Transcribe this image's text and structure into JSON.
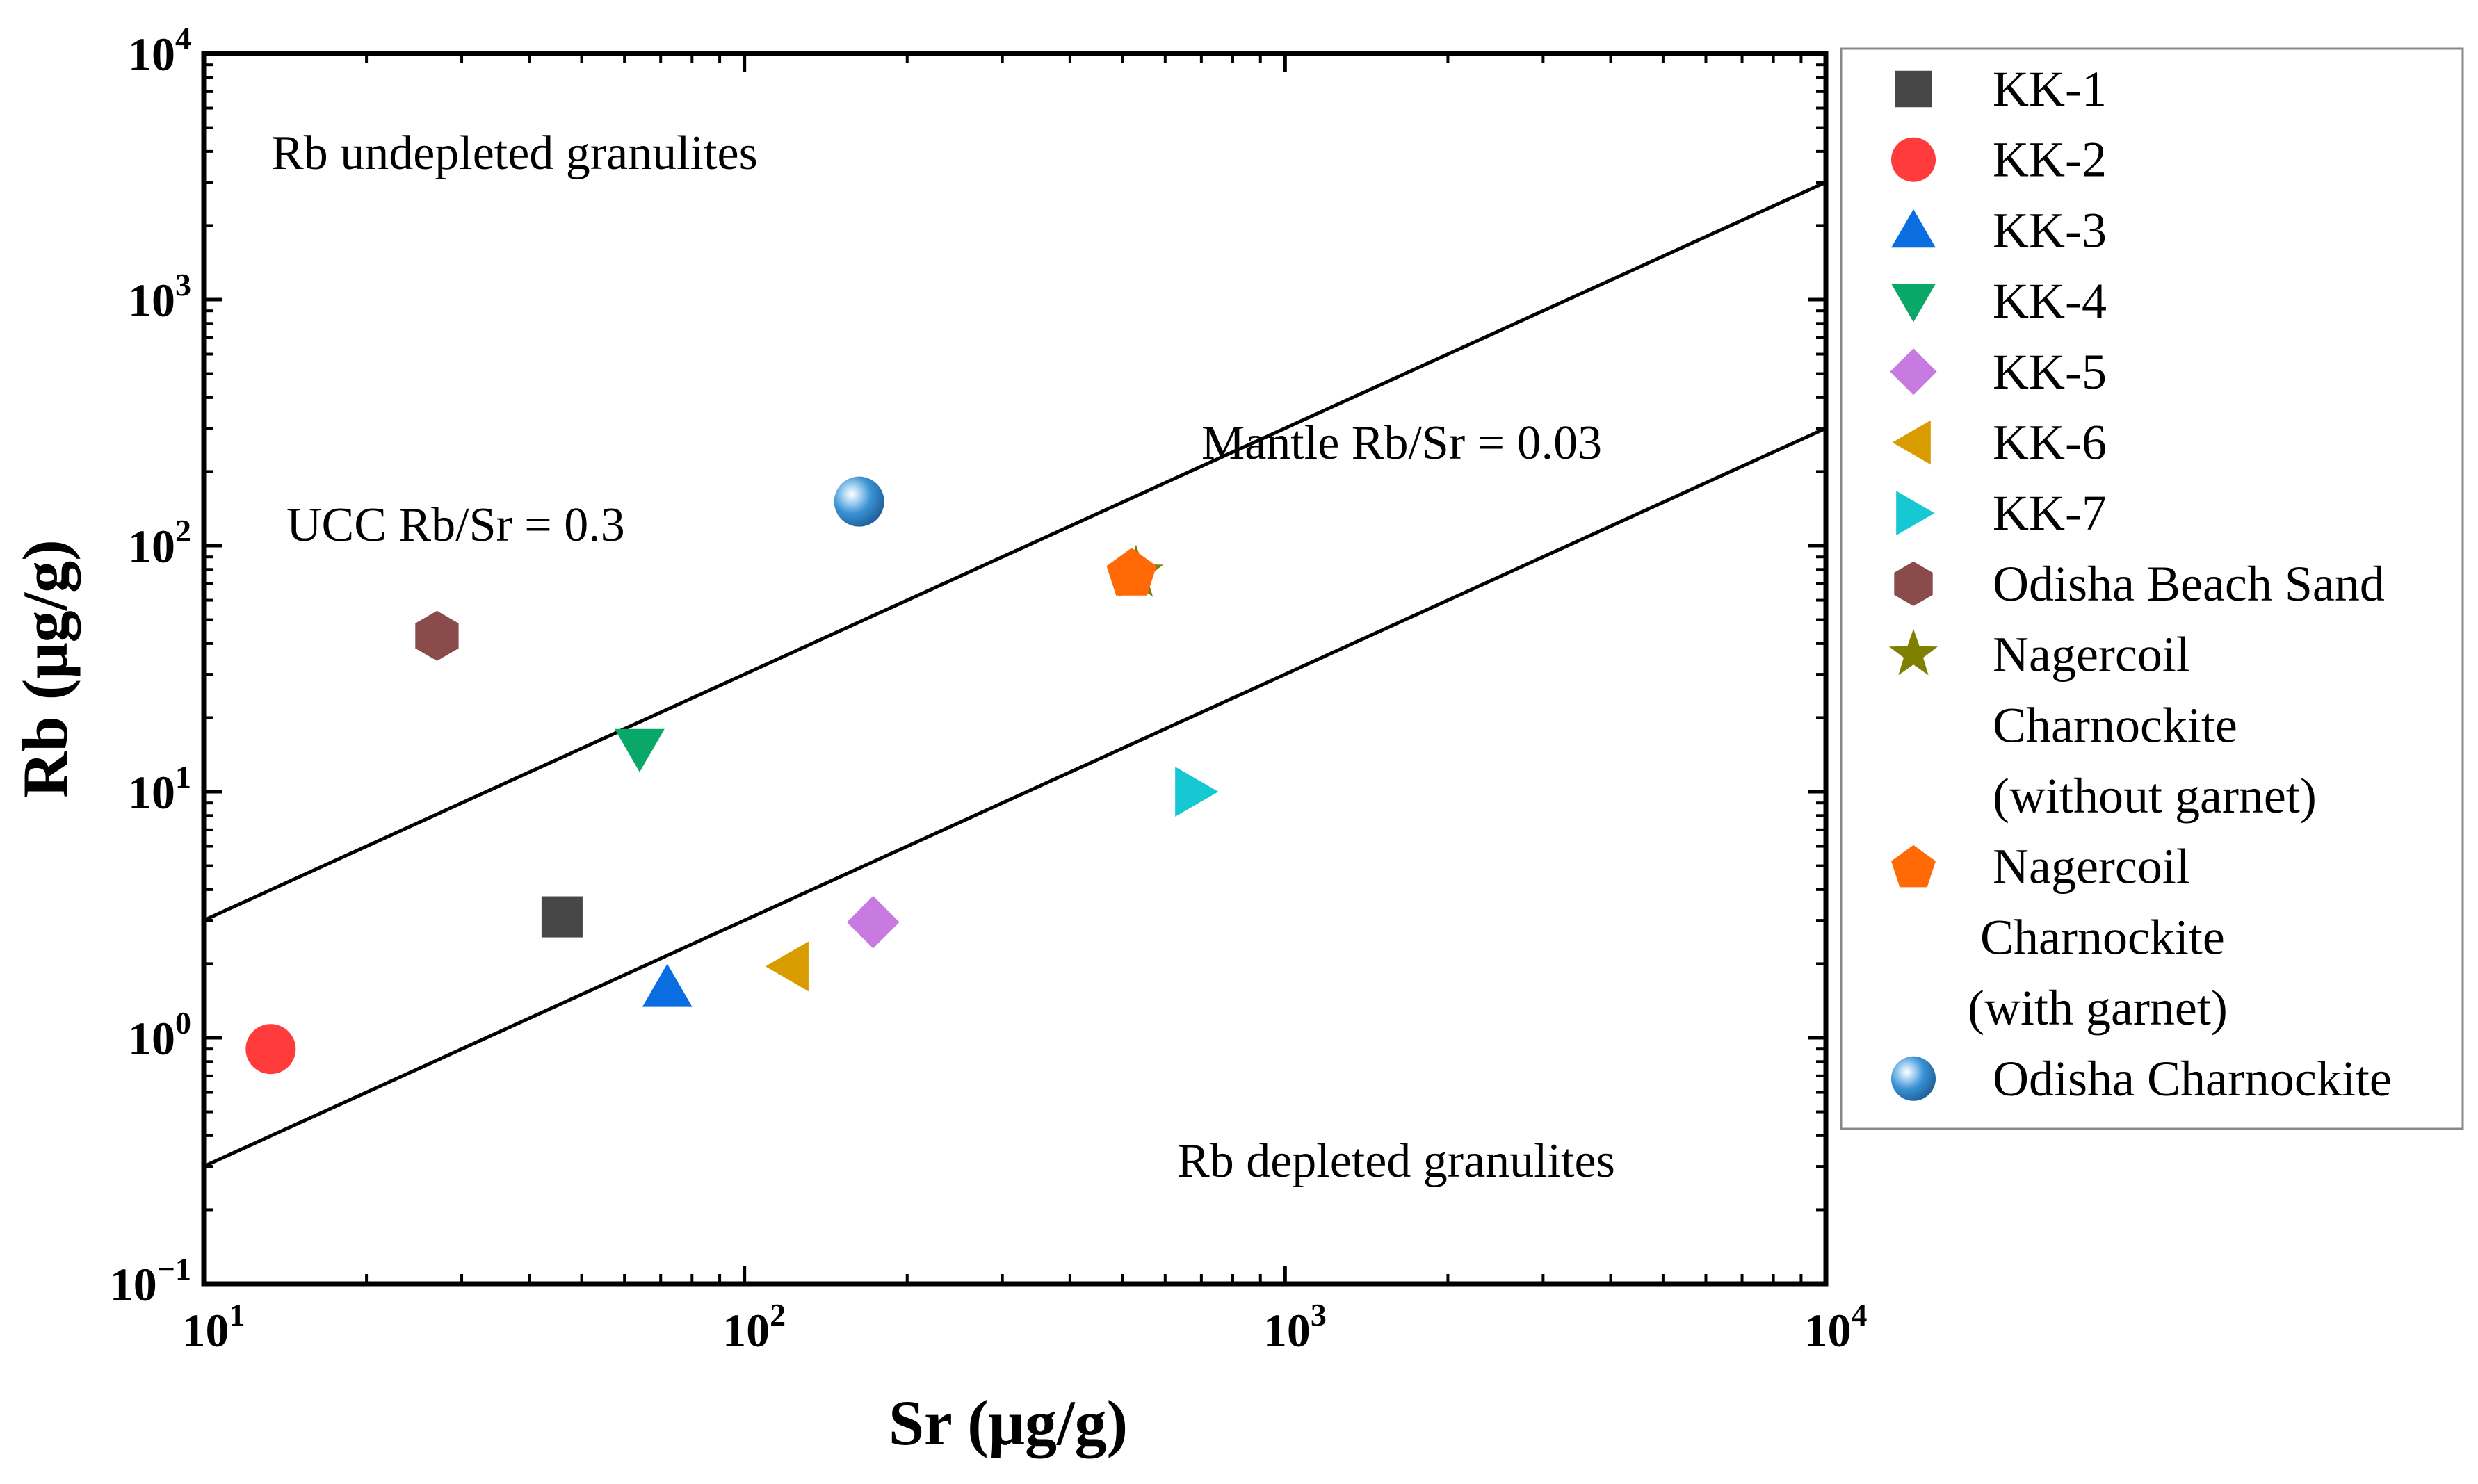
{
  "chart_data": {
    "type": "scatter",
    "title": "",
    "xlabel": "Sr (μg/g)",
    "ylabel": "Rb (μg/g)",
    "xscale": "log",
    "yscale": "log",
    "xlim": [
      10,
      10000
    ],
    "ylim": [
      0.1,
      10000
    ],
    "x_ticks": [
      {
        "value": 10,
        "base": "10",
        "exp": "1"
      },
      {
        "value": 100,
        "base": "10",
        "exp": "2"
      },
      {
        "value": 1000,
        "base": "10",
        "exp": "3"
      },
      {
        "value": 10000,
        "base": "10",
        "exp": "4"
      }
    ],
    "y_ticks": [
      {
        "value": 0.1,
        "base": "10",
        "exp": "−1"
      },
      {
        "value": 1,
        "base": "10",
        "exp": "0"
      },
      {
        "value": 10,
        "base": "10",
        "exp": "1"
      },
      {
        "value": 100,
        "base": "10",
        "exp": "2"
      },
      {
        "value": 1000,
        "base": "10",
        "exp": "3"
      },
      {
        "value": 10000,
        "base": "10",
        "exp": "4"
      }
    ],
    "grid": false,
    "legend_position": "right-outside",
    "series": [
      {
        "name": "KK-1",
        "marker": "square",
        "color": "#474747",
        "points": [
          [
            46,
            3.1
          ]
        ]
      },
      {
        "name": "KK-2",
        "marker": "circle",
        "color": "#ff3b3b",
        "points": [
          [
            13.3,
            0.9
          ]
        ]
      },
      {
        "name": "KK-3",
        "marker": "triangle-up",
        "color": "#0b6ee0",
        "points": [
          [
            72,
            1.6
          ]
        ]
      },
      {
        "name": "KK-4",
        "marker": "triangle-down",
        "color": "#0aa868",
        "points": [
          [
            64,
            15
          ]
        ]
      },
      {
        "name": "KK-5",
        "marker": "diamond",
        "color": "#c77ae0",
        "points": [
          [
            173,
            2.95
          ]
        ]
      },
      {
        "name": "KK-6",
        "marker": "triangle-left",
        "color": "#d99c00",
        "points": [
          [
            121,
            1.95
          ]
        ]
      },
      {
        "name": "KK-7",
        "marker": "triangle-right",
        "color": "#15c8d2",
        "points": [
          [
            680,
            10
          ]
        ]
      },
      {
        "name": "Odisha Beach Sand",
        "marker": "hexagon",
        "color": "#8a4b4b",
        "points": [
          [
            27,
            43
          ]
        ]
      },
      {
        "name": "Nagercoil Charnockite (without garnet)",
        "legend_lines": [
          "Nagercoil",
          "Charnockite",
          "(without garnet)"
        ],
        "marker": "star",
        "color": "#808000",
        "points": [
          [
            530,
            77
          ]
        ]
      },
      {
        "name": "Nagercoil Charnockite (with garnet)",
        "legend_lines": [
          "Nagercoil",
          "Charnockite",
          "(with garnet)"
        ],
        "marker": "pentagon",
        "color": "#ff6a06",
        "points": [
          [
            520,
            78
          ]
        ]
      },
      {
        "name": "Odisha Charnockite",
        "marker": "sphere",
        "color": "#3b93d6",
        "points": [
          [
            163,
            151
          ]
        ]
      }
    ],
    "reference_lines": [
      {
        "name": "UCC Rb/Sr = 0.3",
        "ratio": 0.3
      },
      {
        "name": "Mantle Rb/Sr = 0.03",
        "ratio": 0.03
      }
    ],
    "annotations": [
      {
        "text": "Rb undepleted granulites"
      },
      {
        "text": "UCC Rb/Sr = 0.3"
      },
      {
        "text": "Mantle Rb/Sr = 0.03"
      },
      {
        "text": "Rb depleted granulites"
      }
    ]
  }
}
